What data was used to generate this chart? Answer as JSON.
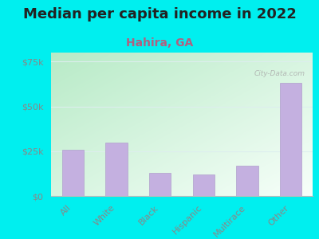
{
  "title": "Median per capita income in 2022",
  "subtitle": "Hahira, GA",
  "categories": [
    "All",
    "White",
    "Black",
    "Hispanic",
    "Multirace",
    "Other"
  ],
  "values": [
    26000,
    30000,
    13000,
    12000,
    17000,
    63000
  ],
  "bar_color": "#c4b0e0",
  "bar_edge_color": "#b0a0cc",
  "title_fontsize": 13,
  "subtitle_fontsize": 10,
  "title_color": "#222222",
  "subtitle_color": "#b06080",
  "background_outer": "#00efef",
  "bg_top_left": "#b8e8c8",
  "bg_bottom_right": "#f8fffc",
  "ytick_labels": [
    "$0",
    "$25k",
    "$50k",
    "$75k"
  ],
  "ytick_values": [
    0,
    25000,
    50000,
    75000
  ],
  "ylim": [
    0,
    80000
  ],
  "watermark": "City-Data.com",
  "grid_color": "#ddeeee",
  "tick_label_color": "#888888"
}
